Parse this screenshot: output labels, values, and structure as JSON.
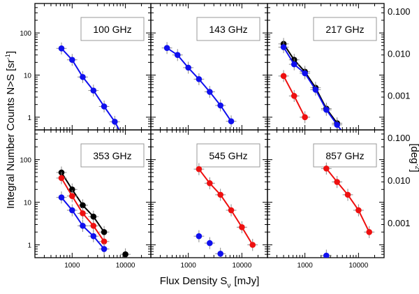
{
  "figure": {
    "xlabel_main": "Flux Density S",
    "xlabel_sub": "ν",
    "xlabel_unit": "[mJy]",
    "ylabel_left": "Integral Number Counts N>S [sr",
    "ylabel_left_sup": "-1",
    "ylabel_left_end": "]",
    "ylabel_right": "[deg",
    "ylabel_right_sup": "-2",
    "ylabel_right_end": "]"
  },
  "chart_data": {
    "type": "scatter",
    "x_scale": "log",
    "y_scale": "log",
    "xlim": [
      200,
      30000
    ],
    "ylim": [
      0.5,
      500
    ],
    "x_tick_labels": [
      "1000",
      "10000"
    ],
    "y_tick_labels": [
      "1",
      "10",
      "100"
    ],
    "y2_tick_labels": [
      "0.001",
      "0.010",
      "0.100"
    ],
    "colors": {
      "black": "#000000",
      "blue": "#1010ee",
      "red": "#ee1010"
    },
    "panels": [
      {
        "label": "100 GHz",
        "series": [
          {
            "color": "blue",
            "x": [
              630,
              1000,
              1580,
              2510,
              3980,
              6310
            ],
            "y": [
              43,
              23,
              9,
              4.3,
              1.8,
              0.78
            ],
            "line_x": [
              630,
              1000,
              1580,
              2510,
              3980,
              6310,
              8000
            ],
            "line_y": [
              43,
              23,
              9,
              4.3,
              1.8,
              0.78,
              0.45
            ]
          }
        ]
      },
      {
        "label": "143 GHz",
        "series": [
          {
            "color": "blue",
            "x": [
              400,
              630,
              1000,
              1580,
              2510,
              3980,
              6310
            ],
            "y": [
              44,
              30,
              15,
              8,
              4,
              1.9,
              0.8
            ],
            "line_x": [
              400,
              630,
              1000,
              1580,
              2510,
              3980,
              6310
            ],
            "line_y": [
              44,
              30,
              15,
              8,
              4,
              1.9,
              0.8
            ]
          }
        ]
      },
      {
        "label": "217 GHz",
        "series": [
          {
            "color": "black",
            "x": [
              400,
              630,
              1000,
              1580,
              2510,
              3980
            ],
            "y": [
              55,
              23,
              12,
              5,
              1.6,
              0.72
            ],
            "line_x": [
              400,
              630,
              1000,
              1580,
              2510,
              3980
            ],
            "line_y": [
              55,
              23,
              12,
              5,
              1.6,
              0.72
            ]
          },
          {
            "color": "blue",
            "x": [
              400,
              630,
              1000,
              1580,
              2510,
              3980
            ],
            "y": [
              46,
              18,
              11,
              4.5,
              1.5,
              0.66
            ],
            "line_x": [
              400,
              630,
              1000,
              1580,
              2510,
              3980,
              5000
            ],
            "line_y": [
              46,
              18,
              11,
              4.5,
              1.5,
              0.66,
              0.45
            ]
          },
          {
            "color": "red",
            "x": [
              400,
              630,
              1000
            ],
            "y": [
              9.5,
              3.2,
              1.0
            ],
            "line_x": [
              400,
              630,
              1000
            ],
            "line_y": [
              9.5,
              3.2,
              1.0
            ]
          }
        ]
      },
      {
        "label": "353 GHz",
        "series": [
          {
            "color": "black",
            "x": [
              630,
              1000,
              1580,
              2510,
              3980
            ],
            "y": [
              50,
              20,
              8.5,
              4.6,
              2.0
            ],
            "line_x": [
              630,
              1000,
              1580,
              2510,
              3980
            ],
            "line_y": [
              50,
              20,
              8.5,
              4.6,
              2.0
            ]
          },
          {
            "color": "red",
            "x": [
              630,
              1000,
              1580,
              2510,
              3980
            ],
            "y": [
              37,
              14,
              5.5,
              2.8,
              1.2
            ],
            "line_x": [
              630,
              1000,
              1580,
              2510,
              3980
            ],
            "line_y": [
              37,
              14,
              5.5,
              2.8,
              1.2
            ]
          },
          {
            "color": "blue",
            "x": [
              630,
              1000,
              1580,
              2510,
              3980
            ],
            "y": [
              13,
              6.5,
              2.8,
              1.6,
              0.8
            ],
            "line_x": [
              630,
              1000,
              1580,
              2510,
              3980
            ],
            "line_y": [
              13,
              6.5,
              2.8,
              1.6,
              0.8
            ]
          },
          {
            "color": "black",
            "x": [
              10000
            ],
            "y": [
              0.6
            ],
            "line_x": [],
            "line_y": []
          }
        ]
      },
      {
        "label": "545 GHz",
        "series": [
          {
            "color": "red",
            "x": [
              1580,
              2510,
              3980,
              6310,
              10000,
              15850
            ],
            "y": [
              60,
              28,
              15,
              6.5,
              2.6,
              1.0
            ],
            "line_x": [
              1580,
              2510,
              3980,
              6310,
              10000,
              15850
            ],
            "line_y": [
              60,
              28,
              15,
              6.5,
              2.6,
              1.0
            ]
          },
          {
            "color": "blue",
            "x": [
              1580,
              2510,
              3980
            ],
            "y": [
              1.6,
              1.1,
              0.62
            ],
            "line_x": [],
            "line_y": []
          }
        ]
      },
      {
        "label": "857 GHz",
        "series": [
          {
            "color": "red",
            "x": [
              2510,
              3980,
              6310,
              10000,
              15850
            ],
            "y": [
              62,
              30,
              15,
              6.5,
              2.0
            ],
            "line_x": [
              2510,
              3980,
              6310,
              10000,
              15850
            ],
            "line_y": [
              62,
              30,
              15,
              6.5,
              2.0
            ]
          },
          {
            "color": "blue",
            "x": [
              2510
            ],
            "y": [
              0.56
            ],
            "line_x": [],
            "line_y": []
          }
        ]
      }
    ]
  }
}
